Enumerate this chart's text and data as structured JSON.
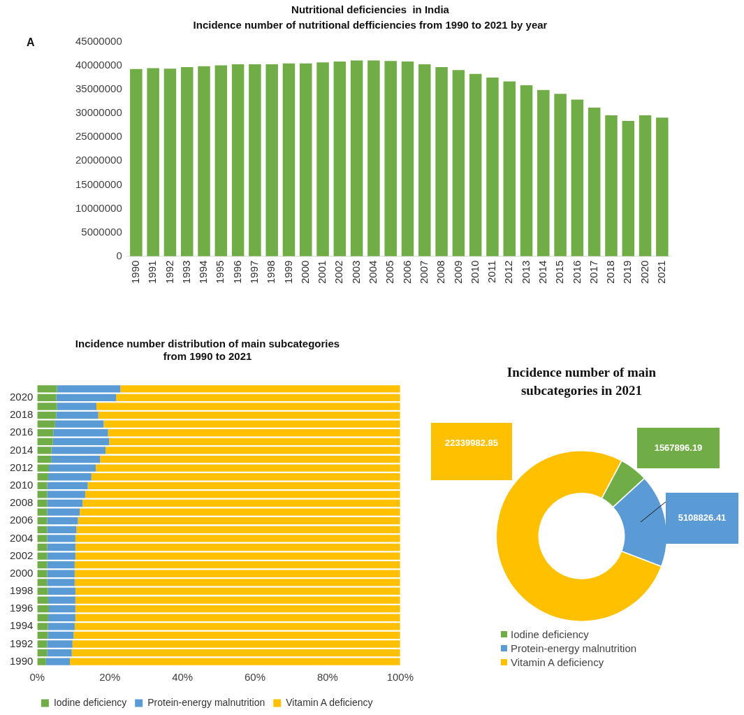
{
  "chart_data": [
    {
      "type": "bar",
      "title": "Nutritional deficiencies  in India",
      "subtitle": "Incidence number of nutritional defficiencies from 1990 to 2021 by year",
      "annotations": [
        "A"
      ],
      "categories": [
        "1990",
        "1991",
        "1992",
        "1993",
        "1994",
        "1995",
        "1996",
        "1997",
        "1998",
        "1999",
        "2000",
        "2001",
        "2002",
        "2003",
        "2004",
        "2005",
        "2006",
        "2007",
        "2008",
        "2009",
        "2010",
        "2011",
        "2012",
        "2013",
        "2014",
        "2015",
        "2016",
        "2017",
        "2018",
        "2019",
        "2020",
        "2021"
      ],
      "values": [
        39300000,
        39500000,
        39400000,
        39700000,
        39900000,
        40100000,
        40300000,
        40300000,
        40300000,
        40500000,
        40500000,
        40700000,
        40900000,
        41100000,
        41100000,
        41000000,
        40900000,
        40300000,
        39700000,
        39100000,
        38300000,
        37500000,
        36700000,
        35900000,
        34900000,
        34100000,
        32900000,
        31200000,
        29600000,
        28400000,
        29600000,
        29100000
      ],
      "color": "#70ad47",
      "ylim": [
        0,
        45000000
      ],
      "yticks": [
        0,
        5000000,
        10000000,
        15000000,
        20000000,
        25000000,
        30000000,
        35000000,
        40000000,
        45000000
      ]
    },
    {
      "type": "bar",
      "orientation": "horizontal",
      "stacked": true,
      "title": "Incidence number distribution of main subcategories\nfrom 1990 to 2021",
      "legend": "bottom",
      "categories": [
        null,
        "2020",
        null,
        "2018",
        null,
        "2016",
        null,
        "2014",
        null,
        "2012",
        null,
        "2010",
        null,
        "2008",
        null,
        "2006",
        null,
        "2004",
        null,
        "2002",
        null,
        "2000",
        null,
        "1998",
        null,
        "1996",
        null,
        "1994",
        null,
        "1992",
        null,
        "1990"
      ],
      "xlim": [
        0,
        100
      ],
      "xticks": [
        {
          "value": 0,
          "label": "0%"
        },
        {
          "value": 20,
          "label": "20%"
        },
        {
          "value": 40,
          "label": "40%"
        },
        {
          "value": 60,
          "label": "60%"
        },
        {
          "value": 80,
          "label": "80%"
        },
        {
          "value": 100,
          "label": "100%"
        }
      ],
      "series": [
        {
          "name": "Iodine deficiency",
          "color": "#70ad47",
          "values": [
            5.4,
            5.2,
            5.4,
            5.2,
            4.9,
            4.4,
            4.3,
            3.9,
            3.8,
            3.2,
            3.0,
            2.7,
            2.7,
            2.7,
            2.7,
            2.7,
            2.7,
            2.7,
            2.7,
            2.7,
            2.7,
            2.7,
            2.7,
            2.9,
            3.0,
            3.2,
            3.0,
            2.9,
            2.9,
            2.7,
            2.7,
            2.4
          ]
        },
        {
          "name": "Protein-energy malnutrition",
          "color": "#5b9bd5",
          "values": [
            17.5,
            16.5,
            10.9,
            11.6,
            13.4,
            15.1,
            15.5,
            14.9,
            13.5,
            12.9,
            11.9,
            11.2,
            10.5,
            9.8,
            9.0,
            8.5,
            8.1,
            7.8,
            7.8,
            7.8,
            7.6,
            7.6,
            7.6,
            7.6,
            7.5,
            7.3,
            7.5,
            7.4,
            7.1,
            7.0,
            6.8,
            6.6
          ]
        },
        {
          "name": "Vitamin A deficiency",
          "color": "#ffc000",
          "values": [
            77.1,
            78.3,
            83.7,
            83.2,
            81.7,
            80.5,
            80.2,
            81.2,
            82.7,
            83.9,
            85.1,
            86.1,
            86.8,
            87.5,
            88.3,
            88.8,
            89.2,
            89.5,
            89.5,
            89.5,
            89.7,
            89.7,
            89.7,
            89.5,
            89.5,
            89.5,
            89.5,
            89.7,
            90.0,
            90.3,
            90.5,
            91.0
          ]
        }
      ]
    },
    {
      "type": "donut",
      "title": "Incidence number of main\nsubcategories in 2021",
      "legend": "bottom",
      "data_labels": true,
      "categories": [
        "Iodine deficiency",
        "Protein-energy malnutrition",
        "Vitamin A deficiency"
      ],
      "values": [
        1567896.19,
        5108826.41,
        22339982.85
      ],
      "colors": [
        "#70ad47",
        "#5b9bd5",
        "#ffc000"
      ]
    }
  ]
}
